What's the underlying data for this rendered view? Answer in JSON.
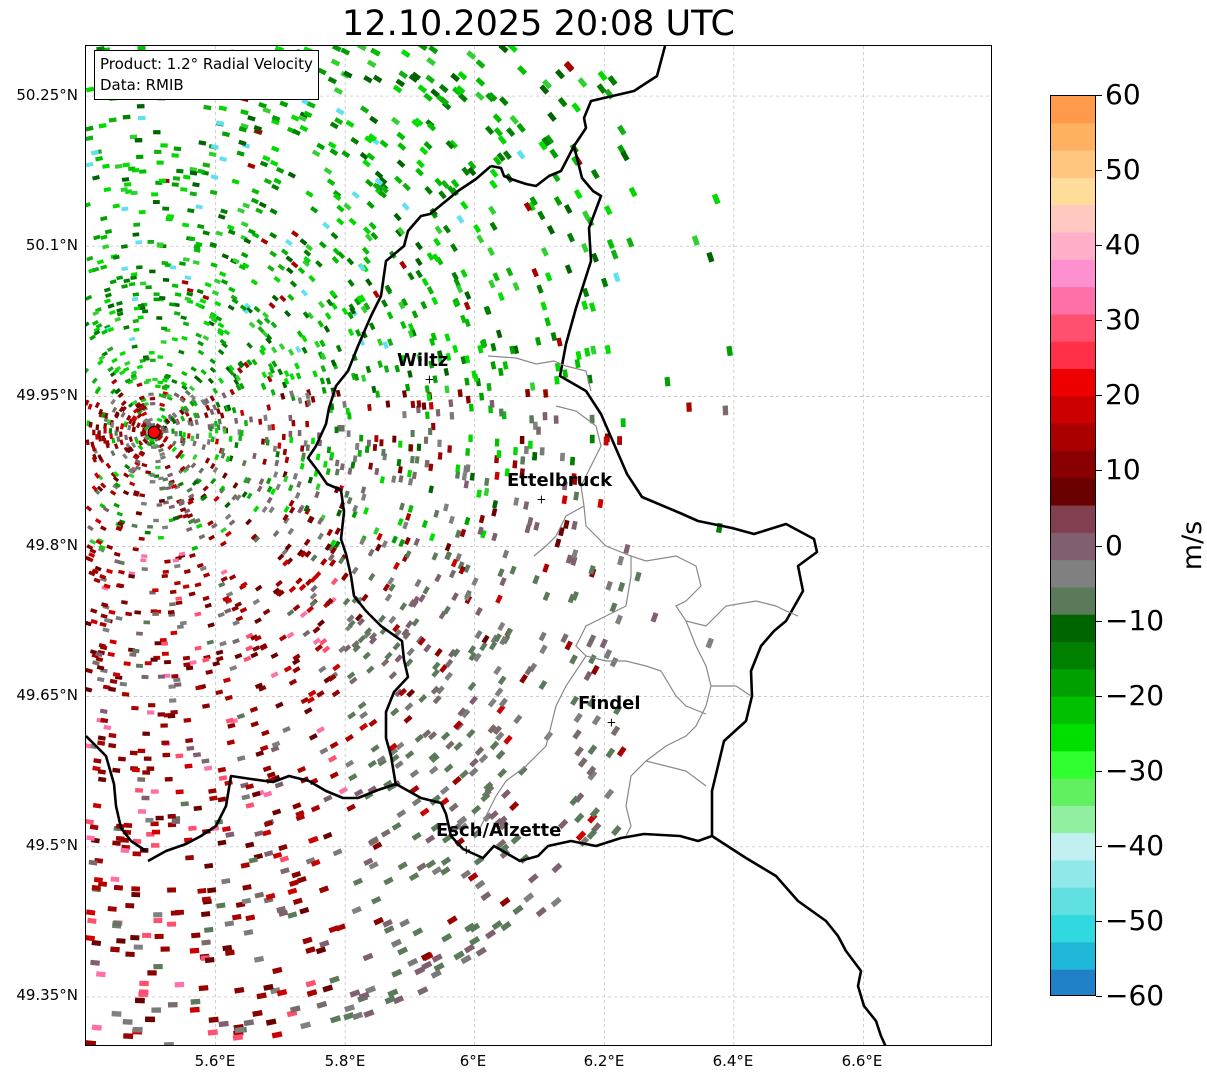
{
  "title": "12.10.2025 20:08 UTC",
  "info": {
    "product": "Product: 1.2° Radial Velocity",
    "data_source": "Data: RMIB"
  },
  "map": {
    "lon_range": [
      5.4,
      6.8
    ],
    "lat_range": [
      49.3,
      50.3
    ],
    "lon_ticks": [
      "5.6°E",
      "5.8°E",
      "6°E",
      "6.2°E",
      "6.4°E",
      "6.6°E"
    ],
    "lat_ticks": [
      "50.25°N",
      "50.1°N",
      "49.95°N",
      "49.8°N",
      "49.65°N",
      "49.5°N",
      "49.35°N"
    ],
    "grid": true,
    "radar_site": {
      "lon": 5.505,
      "lat": 49.914
    },
    "cities": [
      {
        "name": "Wiltz",
        "lon": 5.93,
        "lat": 49.967
      },
      {
        "name": "Ettelbruck",
        "lon": 6.103,
        "lat": 49.847
      },
      {
        "name": "Findel",
        "lon": 6.211,
        "lat": 49.624
      },
      {
        "name": "Esch/Alzette",
        "lon": 5.987,
        "lat": 49.497
      }
    ]
  },
  "colorbar": {
    "label": "m/s",
    "range": [
      -60,
      60
    ],
    "ticks": [
      "60",
      "50",
      "40",
      "30",
      "20",
      "10",
      "0",
      "−10",
      "−20",
      "−30",
      "−40",
      "−50",
      "−60"
    ],
    "colors": [
      "#ff9a4a",
      "#ffb060",
      "#ffc680",
      "#ffdc9a",
      "#ffc8c0",
      "#ffb0c8",
      "#ff90d0",
      "#ff70a8",
      "#ff5070",
      "#ff3048",
      "#ee0000",
      "#cc0000",
      "#aa0000",
      "#880000",
      "#6a0000",
      "#804050",
      "#806070",
      "#808080",
      "#5a7a5a",
      "#006400",
      "#008000",
      "#00a000",
      "#00c000",
      "#00e000",
      "#30ff30",
      "#60f060",
      "#90f0a0",
      "#c0f0f0",
      "#90e8e8",
      "#60e0e0",
      "#30d8e0",
      "#20b8d8",
      "#2080c8"
    ]
  }
}
